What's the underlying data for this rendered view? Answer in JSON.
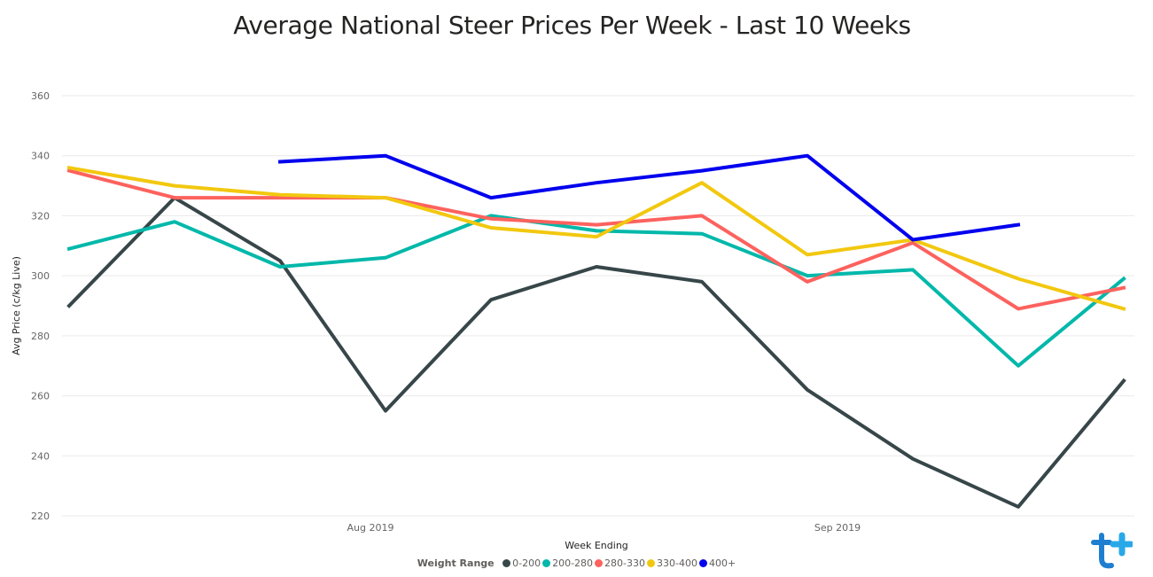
{
  "chart_data": {
    "type": "line",
    "title": "Average National Steer Prices Per Week - Last 10 Weeks",
    "xlabel": "Week Ending",
    "ylabel": "Avg Price (c/kg Live)",
    "ylim": [
      220,
      360
    ],
    "yticks": [
      220,
      240,
      260,
      280,
      300,
      320,
      340,
      360
    ],
    "x": [
      "2019-07-12",
      "2019-07-19",
      "2019-07-26",
      "2019-08-02",
      "2019-08-09",
      "2019-08-16",
      "2019-08-23",
      "2019-08-30",
      "2019-09-06",
      "2019-09-13",
      "2019-09-20"
    ],
    "x_tick_labels": [
      {
        "label": "Aug 2019",
        "date": "2019-08-01"
      },
      {
        "label": "Sep 2019",
        "date": "2019-09-01"
      }
    ],
    "grid": true,
    "legend_title": "Weight Range",
    "legend_position": "bottom-center",
    "series": [
      {
        "name": "0-200",
        "color": "#374649",
        "values": [
          290,
          326,
          305,
          255,
          292,
          303,
          298,
          262,
          239,
          223,
          265
        ]
      },
      {
        "name": "200-280",
        "color": "#01B8AA",
        "values": [
          309,
          318,
          303,
          306,
          320,
          315,
          314,
          300,
          302,
          270,
          299
        ]
      },
      {
        "name": "280-330",
        "color": "#FD625E",
        "values": [
          335,
          326,
          326,
          326,
          319,
          317,
          320,
          298,
          311,
          289,
          296
        ]
      },
      {
        "name": "330-400",
        "color": "#F2C80F",
        "values": [
          336,
          330,
          327,
          326,
          316,
          313,
          331,
          307,
          312,
          299,
          289
        ]
      },
      {
        "name": "400+",
        "color": "#0000EE",
        "values": [
          null,
          null,
          338,
          340,
          326,
          331,
          335,
          340,
          312,
          317,
          null
        ]
      }
    ]
  }
}
